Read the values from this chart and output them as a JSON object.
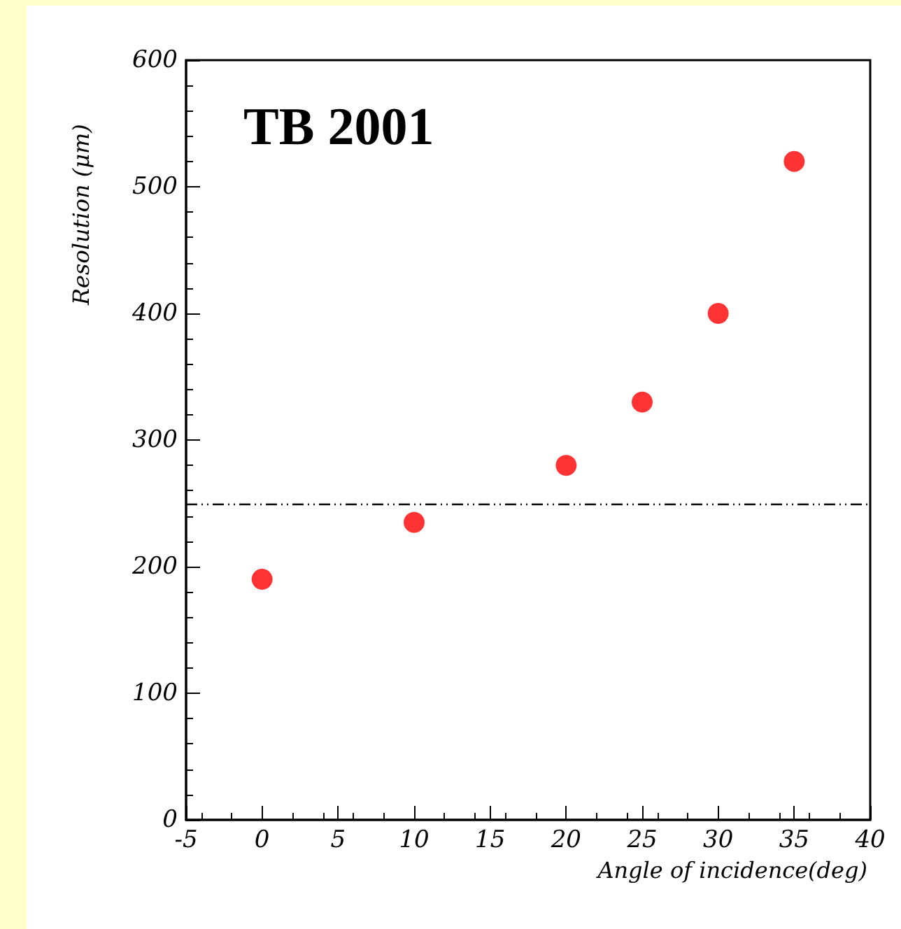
{
  "chart_data": {
    "type": "scatter",
    "x": [
      0,
      10,
      20,
      25,
      30,
      35
    ],
    "series": [
      {
        "color": "#ff0000",
        "values": [
          190,
          235,
          280,
          330,
          400,
          520
        ]
      }
    ],
    "xlabel": "Angle of incidence(deg)",
    "ylabel": "Resolution (μm)",
    "annotations": [
      "TB 2001"
    ],
    "xlim": [
      -5,
      40
    ],
    "xticks": [
      -5,
      0,
      5,
      10,
      15,
      20,
      25,
      30,
      35,
      40
    ],
    "ylim": [
      0,
      600
    ],
    "yticks": [
      0,
      100,
      200,
      300,
      400,
      500,
      600
    ],
    "ref_lines": [
      {
        "axis": "y",
        "value": 250,
        "color": "#000000",
        "line_style": "dashed"
      }
    ],
    "marker": "circle",
    "grid": false
  }
}
